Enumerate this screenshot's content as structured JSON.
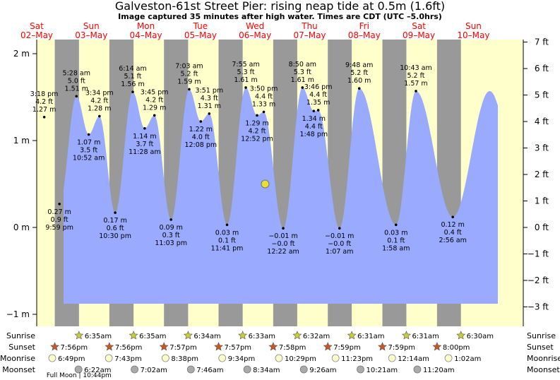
{
  "title": "Galveston-61st Street Pier: rising  neap tide at 0.5m (1.6ft)",
  "subtitle": "Image captured 35 minutes after high water. Times are CDT (UTC –5.0hrs)",
  "colors": {
    "day": "#ffffcc",
    "night": "#999999",
    "water": "#99aaff",
    "day_label": "#ff0000",
    "current_marker": "#e8e030",
    "sunrise_star": "#cccc33",
    "sunset_star": "#cc5522",
    "moonrise": "#ffffcc",
    "moonset": "#aaaaaa"
  },
  "chart_data": {
    "type": "area",
    "title": "Galveston-61st Street Pier: rising  neap tide at 0.5m (1.6ft)",
    "y_unit_left": "m",
    "y_unit_right": "ft",
    "ylim_m": [
      -1.0,
      2.15
    ],
    "left_ticks": [
      "−1 m",
      "0 m",
      "1 m",
      "2 m"
    ],
    "right_ticks": [
      "−3 ft",
      "−2 ft",
      "−1 ft",
      "0 ft",
      "1 ft",
      "2 ft",
      "3 ft",
      "4 ft",
      "5 ft",
      "6 ft",
      "7 ft"
    ],
    "grid": false,
    "days": [
      {
        "dow": "Sat",
        "date": "02–May"
      },
      {
        "dow": "Sun",
        "date": "03–May"
      },
      {
        "dow": "Mon",
        "date": "04–May"
      },
      {
        "dow": "Tue",
        "date": "05–May"
      },
      {
        "dow": "Wed",
        "date": "06–May"
      },
      {
        "dow": "Thu",
        "date": "07–May"
      },
      {
        "dow": "Fri",
        "date": "08–May"
      },
      {
        "dow": "Sat",
        "date": "09–May"
      },
      {
        "dow": "Sun",
        "date": "10–May"
      }
    ],
    "night_intervals": [
      {
        "start": "02-May 19:56",
        "end": "03-May 06:35"
      },
      {
        "start": "03-May 19:56",
        "end": "04-May 06:35"
      },
      {
        "start": "04-May 19:57",
        "end": "05-May 06:34"
      },
      {
        "start": "05-May 19:57",
        "end": "06-May 06:33"
      },
      {
        "start": "06-May 19:58",
        "end": "07-May 06:32"
      },
      {
        "start": "07-May 19:59",
        "end": "08-May 06:31"
      },
      {
        "start": "08-May 19:59",
        "end": "09-May 06:31"
      },
      {
        "start": "09-May 20:00",
        "end": "10-May 06:30"
      }
    ],
    "tide_events": [
      {
        "type": "high",
        "time": "3:18 pm",
        "ft": "4.2 ft",
        "m": "1.27 m",
        "day": 0,
        "hour": 15.3,
        "value_m": 1.27
      },
      {
        "type": "low",
        "time": "9:59 pm",
        "ft": "0.9 ft",
        "m": "0.27 m",
        "day": 0,
        "hour": 21.98,
        "value_m": 0.27
      },
      {
        "type": "high",
        "time": "5:28 am",
        "ft": "5.0 ft",
        "m": "1.51 m",
        "day": 1,
        "hour": 5.47,
        "value_m": 1.51
      },
      {
        "type": "low",
        "time": "10:52 am",
        "ft": "3.5 ft",
        "m": "1.07 m",
        "day": 1,
        "hour": 10.87,
        "value_m": 1.07
      },
      {
        "type": "high",
        "time": "3:34 pm",
        "ft": "4.2 ft",
        "m": "1.28 m",
        "day": 1,
        "hour": 15.57,
        "value_m": 1.28
      },
      {
        "type": "low",
        "time": "10:30 pm",
        "ft": "0.6 ft",
        "m": "0.17 m",
        "day": 1,
        "hour": 22.5,
        "value_m": 0.17
      },
      {
        "type": "high",
        "time": "6:14 am",
        "ft": "5.1 ft",
        "m": "1.56 m",
        "day": 2,
        "hour": 6.23,
        "value_m": 1.56
      },
      {
        "type": "low",
        "time": "11:28 am",
        "ft": "3.7 ft",
        "m": "1.14 m",
        "day": 2,
        "hour": 11.47,
        "value_m": 1.14
      },
      {
        "type": "high",
        "time": "3:45 pm",
        "ft": "4.2 ft",
        "m": "1.29 m",
        "day": 2,
        "hour": 15.75,
        "value_m": 1.29
      },
      {
        "type": "low",
        "time": "11:03 pm",
        "ft": "0.3 ft",
        "m": "0.09 m",
        "day": 2,
        "hour": 23.05,
        "value_m": 0.09
      },
      {
        "type": "high",
        "time": "7:03 am",
        "ft": "5.2 ft",
        "m": "1.59 m",
        "day": 3,
        "hour": 7.05,
        "value_m": 1.59
      },
      {
        "type": "low",
        "time": "12:08 pm",
        "ft": "4.0 ft",
        "m": "1.22 m",
        "day": 3,
        "hour": 12.13,
        "value_m": 1.22
      },
      {
        "type": "high",
        "time": "3:51 pm",
        "ft": "4.3 ft",
        "m": "1.31 m",
        "day": 3,
        "hour": 15.85,
        "value_m": 1.31
      },
      {
        "type": "low",
        "time": "11:41 pm",
        "ft": "0.1 ft",
        "m": "0.03 m",
        "day": 3,
        "hour": 23.68,
        "value_m": 0.03
      },
      {
        "type": "high",
        "time": "7:55 am",
        "ft": "5.3 ft",
        "m": "1.61 m",
        "day": 4,
        "hour": 7.92,
        "value_m": 1.61
      },
      {
        "type": "low",
        "time": "12:52 pm",
        "ft": "4.2 ft",
        "m": "1.29 m",
        "day": 4,
        "hour": 12.87,
        "value_m": 1.29
      },
      {
        "type": "high",
        "time": "3:50 pm",
        "ft": "4.4 ft",
        "m": "1.33 m",
        "day": 4,
        "hour": 15.83,
        "value_m": 1.33
      },
      {
        "type": "low",
        "time": "12:22 am",
        "ft": "−0.0 ft",
        "m": "−0.01 m",
        "day": 5,
        "hour": 0.37,
        "value_m": -0.01
      },
      {
        "type": "high",
        "time": "8:50 am",
        "ft": "5.3 ft",
        "m": "1.61 m",
        "day": 5,
        "hour": 8.83,
        "value_m": 1.61
      },
      {
        "type": "low",
        "time": "1:48 pm",
        "ft": "4.4 ft",
        "m": "1.34 m",
        "day": 5,
        "hour": 13.8,
        "value_m": 1.34
      },
      {
        "type": "high",
        "time": "3:46 pm",
        "ft": "4.4 ft",
        "m": "1.35 m",
        "day": 5,
        "hour": 15.77,
        "value_m": 1.35
      },
      {
        "type": "low",
        "time": "1:07 am",
        "ft": "−0.0 ft",
        "m": "−0.01 m",
        "day": 6,
        "hour": 1.12,
        "value_m": -0.01
      },
      {
        "type": "high",
        "time": "9:48 am",
        "ft": "5.2 ft",
        "m": "1.60 m",
        "day": 6,
        "hour": 9.8,
        "value_m": 1.6
      },
      {
        "type": "low",
        "time": "1:58 am",
        "ft": "0.1 ft",
        "m": "0.03 m",
        "day": 7,
        "hour": 1.97,
        "value_m": 0.03
      },
      {
        "type": "high",
        "time": "10:43 am",
        "ft": "5.2 ft",
        "m": "1.57 m",
        "day": 7,
        "hour": 10.72,
        "value_m": 1.57
      },
      {
        "type": "low",
        "time": "2:56 am",
        "ft": "0.4 ft",
        "m": "0.12 m",
        "day": 8,
        "hour": 2.93,
        "value_m": 0.12
      }
    ],
    "current": {
      "day": 4,
      "hour": 16.42,
      "value_m": 0.5,
      "label": "rising  neap tide at 0.5m (1.6ft)"
    }
  },
  "astro": {
    "labels": {
      "sunrise": "Sunrise",
      "sunset": "Sunset",
      "moonrise": "Moonrise",
      "moonset": "Moonset"
    },
    "sunrise": [
      {
        "day": 1,
        "hour": 6.58,
        "time": "6:35am"
      },
      {
        "day": 2,
        "hour": 6.58,
        "time": "6:35am"
      },
      {
        "day": 3,
        "hour": 6.57,
        "time": "6:34am"
      },
      {
        "day": 4,
        "hour": 6.55,
        "time": "6:33am"
      },
      {
        "day": 5,
        "hour": 6.53,
        "time": "6:32am"
      },
      {
        "day": 6,
        "hour": 6.52,
        "time": "6:31am"
      },
      {
        "day": 7,
        "hour": 6.52,
        "time": "6:31am"
      },
      {
        "day": 8,
        "hour": 6.5,
        "time": "6:30am"
      }
    ],
    "sunset": [
      {
        "day": 0,
        "hour": 19.93,
        "time": "7:56pm"
      },
      {
        "day": 1,
        "hour": 19.93,
        "time": "7:56pm"
      },
      {
        "day": 2,
        "hour": 19.95,
        "time": "7:57pm"
      },
      {
        "day": 3,
        "hour": 19.95,
        "time": "7:57pm"
      },
      {
        "day": 4,
        "hour": 19.97,
        "time": "7:58pm"
      },
      {
        "day": 5,
        "hour": 19.98,
        "time": "7:59pm"
      },
      {
        "day": 6,
        "hour": 19.98,
        "time": "7:59pm"
      },
      {
        "day": 7,
        "hour": 20.0,
        "time": "8:00pm"
      }
    ],
    "moonrise": [
      {
        "day": 0,
        "hour": 18.82,
        "time": "6:49pm"
      },
      {
        "day": 1,
        "hour": 19.72,
        "time": "7:43pm"
      },
      {
        "day": 2,
        "hour": 20.63,
        "time": "8:38pm"
      },
      {
        "day": 3,
        "hour": 21.57,
        "time": "9:34pm"
      },
      {
        "day": 4,
        "hour": 22.48,
        "time": "10:29pm"
      },
      {
        "day": 5,
        "hour": 23.38,
        "time": "11:23pm"
      },
      {
        "day": 7,
        "hour": 0.23,
        "time": "12:14am"
      },
      {
        "day": 8,
        "hour": 1.03,
        "time": "1:02am"
      }
    ],
    "moonset": [
      {
        "day": 1,
        "hour": 6.37,
        "time": "6:22am"
      },
      {
        "day": 2,
        "hour": 7.03,
        "time": "7:02am"
      },
      {
        "day": 3,
        "hour": 7.77,
        "time": "7:46am"
      },
      {
        "day": 4,
        "hour": 8.57,
        "time": "8:34am"
      },
      {
        "day": 5,
        "hour": 9.43,
        "time": "9:26am"
      },
      {
        "day": 6,
        "hour": 10.35,
        "time": "10:21am"
      },
      {
        "day": 7,
        "hour": 11.33,
        "time": "11:20am"
      }
    ],
    "full_moon": {
      "label": "Full Moon | 10:44pm",
      "day": 1,
      "hour": 22.73
    }
  }
}
